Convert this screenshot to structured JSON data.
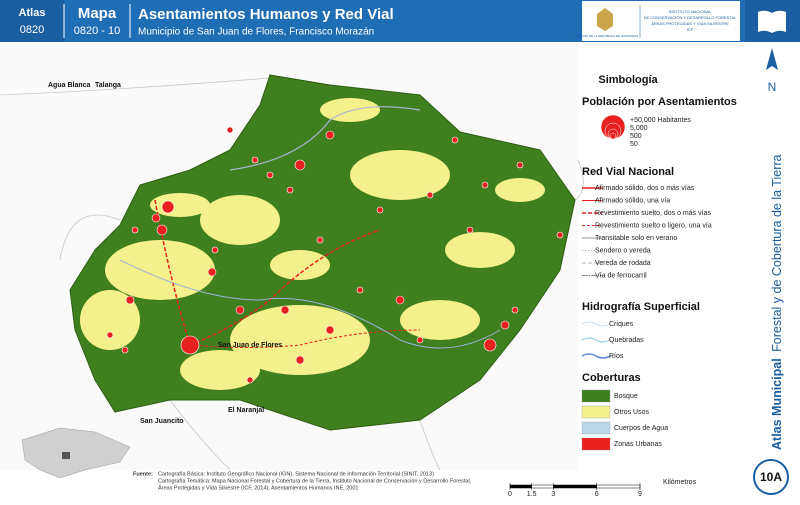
{
  "header": {
    "atlas_label": "Atlas",
    "atlas_code": "0820",
    "map_label": "Mapa",
    "map_code": "0820 - 10",
    "title": "Asentamientos Humanos y Red Vial",
    "subtitle": "Municipio de San Juan de Flores, Francisco Morazán",
    "logo_left": "GOBIERNO DE LA REPÚBLICA DE HONDURAS",
    "logo_right": [
      "INSTITUTO NACIONAL",
      "DE CONSERVACIÓN Y DESARROLLO FORESTAL",
      "ÁREAS PROTEGIDAS Y VIDA SILVESTRE",
      "ICF"
    ]
  },
  "side": {
    "bold": "Atlas Municipal",
    "rest": "Forestal y de Cobertura de la Tierra",
    "north": "N",
    "sheet": "10A"
  },
  "legend": {
    "title": "Simbología",
    "population": {
      "title": "Población por Asentamientos",
      "sizes": [
        "+50,000 Habitantes",
        "5,000",
        "500",
        "50"
      ]
    },
    "roads": {
      "title": "Red Vial Nacional",
      "items": [
        "Afirmado sólido, dos o más vías",
        "Afirmado sólido, una vía",
        "Revestimiento suelto, dos o más vías",
        "Revestimiento suelto o ligero, una vía",
        "Transitable solo en verano",
        "Sendero o vereda",
        "Vereda de rodada",
        "Vía de ferrocarril"
      ]
    },
    "hydro": {
      "title": "Hidrografía Superficial",
      "items": [
        "Criques",
        "Quebradas",
        "Ríos"
      ]
    },
    "cover": {
      "title": "Coberturas",
      "items": [
        {
          "label": "Bosque",
          "color": "#3f7f1e"
        },
        {
          "label": "Otros Usos",
          "color": "#f4f08c"
        },
        {
          "label": "Cuerpos de Agua",
          "color": "#bcd6ea"
        },
        {
          "label": "Zonas Urbanas",
          "color": "#e8201e"
        }
      ]
    }
  },
  "places": [
    "Agua Blanca",
    "Talanga",
    "San Juan de Flores",
    "El Naranjal",
    "San Juancito"
  ],
  "scale_bar": {
    "unit": "Kilómetros",
    "ticks": [
      0,
      1.5,
      3,
      6,
      9
    ]
  },
  "source": {
    "label": "Fuente:",
    "lines": [
      "Cartografía Básica: Instituto Geográfico Nacional (IGN), Sistema Nacional de Información Territorial (SINIT, 2013)",
      "Cartografía Temática: Mapa Nacional Forestal y Cobertura de la Tierra, Instituto Nacional de Conservación y Desarrollo Forestal,",
      "Áreas Protegidas y Vida Silvestre (ICF, 2014); Asentamientos Humanos INE, 2001"
    ]
  }
}
